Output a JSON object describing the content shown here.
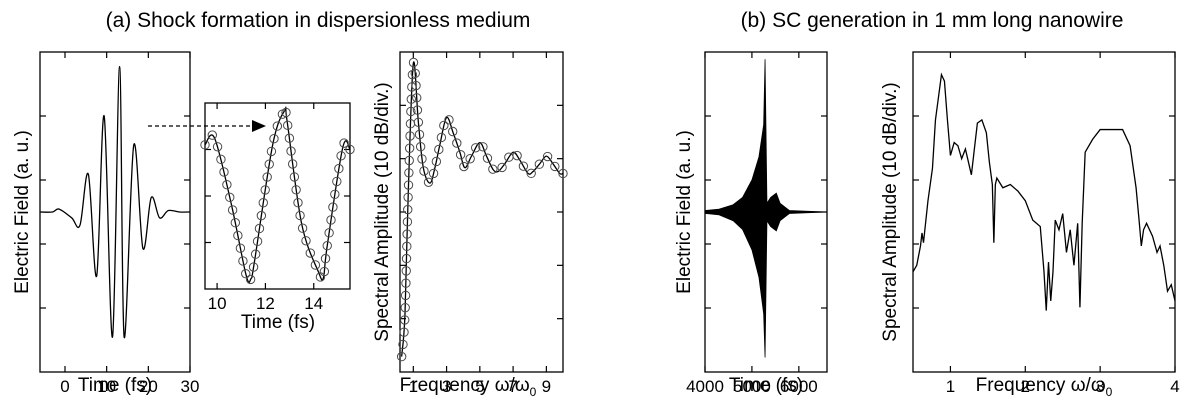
{
  "titles": {
    "a": "(a) Shock formation in dispersionless medium",
    "b": "(b) SC generation in 1 mm long nanowire"
  },
  "colors": {
    "line": "#000000",
    "marker": "#4a4a4a",
    "background": "#ffffff"
  },
  "chart_data": [
    {
      "id": "a1",
      "type": "line",
      "title": "",
      "xlabel": "Time (fs)",
      "ylabel": "Electric Field (a. u.)",
      "xlim": [
        -6,
        30
      ],
      "ylim": [
        -1.1,
        1.1
      ],
      "xticks": [
        0,
        10,
        20,
        30
      ],
      "xtick_labels": [
        "0",
        "10",
        "20",
        "30"
      ],
      "ytick_labels": [],
      "series": [
        {
          "x": [
            -6,
            -3,
            -1.4,
            1.6,
            3.6,
            5.6,
            7.6,
            9.4,
            11.4,
            13.1,
            14.2,
            16.5,
            18.7,
            20.7,
            22.7,
            24.8,
            27.5,
            30
          ],
          "y": [
            0,
            0,
            0.02,
            -0.04,
            -0.09,
            0.26,
            -0.44,
            0.66,
            -0.86,
            1,
            -0.86,
            0.46,
            -0.25,
            0.1,
            -0.04,
            0.01,
            0,
            0
          ]
        }
      ]
    },
    {
      "id": "a2",
      "type": "line",
      "title": "",
      "xlabel": "Time (fs)",
      "ylabel": "",
      "xlim": [
        9.5,
        15.5
      ],
      "ylim": [
        -1,
        1
      ],
      "xticks": [
        10,
        12,
        14
      ],
      "xtick_labels": [
        "10",
        "12",
        "14"
      ],
      "ytick_labels": [],
      "series": [
        {
          "x": [
            9.5,
            9.9,
            10.6,
            11.2,
            11.4,
            11.55,
            12.3,
            12.8,
            12.9,
            13.5,
            14.2,
            14.4,
            14.55,
            15.2,
            15.5
          ],
          "y": [
            0.55,
            0.62,
            -0.1,
            -0.85,
            -0.89,
            -0.7,
            0.55,
            0.92,
            0.8,
            -0.3,
            -0.82,
            -0.88,
            -0.55,
            0.52,
            0.5
          ]
        }
      ],
      "annotation": "dashed arrow from the pulse peak in the left panel to the shock front"
    },
    {
      "id": "a3",
      "type": "line",
      "title": "",
      "xlabel": "Frequency ω/ω0",
      "ylabel": "Spectral Amplitude (10 dB/div.)",
      "xlim": [
        0.2,
        10
      ],
      "ylim": [
        -6,
        2.3
      ],
      "xticks": [
        1,
        3,
        5,
        7,
        9
      ],
      "xtick_labels": [
        "1",
        "3",
        "5",
        "7",
        "9"
      ],
      "ytick_labels": [],
      "series": [
        {
          "x": [
            0.3,
            0.5,
            0.7,
            1.0,
            1.3,
            1.6,
            2.0,
            2.3,
            2.6,
            3.0,
            3.4,
            3.8,
            4.1,
            4.5,
            5.0,
            5.4,
            5.8,
            6.1,
            6.5,
            7.0,
            7.4,
            7.9,
            8.2,
            8.6,
            9.0,
            9.4,
            9.8,
            10.0
          ],
          "y": [
            -5.6,
            -4.5,
            -1.3,
            2.0,
            0.5,
            -0.7,
            -1.1,
            -0.7,
            -0.1,
            0.6,
            0.2,
            -0.3,
            -0.7,
            -0.4,
            -0.05,
            -0.4,
            -0.75,
            -0.8,
            -0.6,
            -0.3,
            -0.5,
            -0.85,
            -0.8,
            -0.6,
            -0.4,
            -0.6,
            -0.85,
            -0.85
          ]
        }
      ]
    },
    {
      "id": "b1",
      "type": "line",
      "title": "",
      "xlabel": "Time (fs)",
      "ylabel": "Electric Field (a. u.)",
      "xlim": [
        4000,
        6600
      ],
      "ylim": [
        -1.1,
        1.1
      ],
      "xticks": [
        4000,
        5000,
        6000
      ],
      "xtick_labels": [
        "4000",
        "5000",
        "6000"
      ],
      "ytick_labels": [],
      "series": [
        {
          "name": "",
          "x": [
            4000,
            4300,
            4600,
            4800,
            5000,
            5150,
            5250,
            5280,
            5320,
            5400,
            5520,
            5600,
            5800,
            6600
          ],
          "envelope_upper": [
            0.01,
            0.02,
            0.05,
            0.1,
            0.22,
            0.38,
            0.6,
            1.05,
            0.06,
            0.1,
            0.13,
            0.06,
            0.01,
            0
          ],
          "envelope_lower": [
            -0.01,
            -0.02,
            -0.06,
            -0.12,
            -0.26,
            -0.45,
            -0.7,
            -1.0,
            -0.06,
            -0.1,
            -0.13,
            -0.06,
            -0.01,
            0
          ]
        }
      ]
    },
    {
      "id": "b2",
      "type": "line",
      "title": "",
      "xlabel": "Frequency ω/ω0",
      "ylabel": "Spectral Amplitude (10 dB/div.)",
      "xlim": [
        0.5,
        4
      ],
      "ylim": [
        -8.3,
        1.6
      ],
      "xticks": [
        1,
        2,
        3,
        4
      ],
      "xtick_labels": [
        "1",
        "2",
        "3",
        "4"
      ],
      "ytick_labels": [],
      "series": [
        {
          "x": [
            0.5,
            0.55,
            0.6,
            0.62,
            0.64,
            0.7,
            0.76,
            0.8,
            0.88,
            0.92,
            0.96,
            1.0,
            1.05,
            1.1,
            1.15,
            1.2,
            1.28,
            1.32,
            1.36,
            1.42,
            1.48,
            1.52,
            1.56,
            1.58,
            1.6,
            1.62,
            1.7,
            1.8,
            1.9,
            2.0,
            2.1,
            2.2,
            2.25,
            2.28,
            2.31,
            2.34,
            2.37,
            2.4,
            2.45,
            2.5,
            2.55,
            2.6,
            2.65,
            2.7,
            2.73,
            2.76,
            2.8,
            2.9,
            3.0,
            3.1,
            3.2,
            3.3,
            3.4,
            3.48,
            3.52,
            3.55,
            3.58,
            3.62,
            3.7,
            3.76,
            3.8,
            3.85,
            3.9,
            3.95,
            4.0
          ],
          "y": [
            -5.2,
            -5.0,
            -4.4,
            -4.0,
            -4.3,
            -3.0,
            -2.0,
            -0.5,
            0.9,
            0.7,
            -0.5,
            -1.6,
            -1.2,
            -1.3,
            -1.7,
            -1.4,
            -2.2,
            -1.4,
            -0.6,
            -0.5,
            -0.9,
            -1.8,
            -2.5,
            -4.3,
            -2.5,
            -2.3,
            -2.6,
            -2.5,
            -2.7,
            -3.0,
            -3.6,
            -3.8,
            -5.2,
            -6.4,
            -4.9,
            -6.1,
            -5.2,
            -3.6,
            -3.9,
            -3.4,
            -4.6,
            -3.9,
            -5.0,
            -3.7,
            -6.3,
            -3.7,
            -1.5,
            -1.1,
            -0.8,
            -0.8,
            -0.8,
            -0.8,
            -1.3,
            -2.6,
            -3.6,
            -4.4,
            -3.9,
            -3.7,
            -4.1,
            -4.6,
            -4.4,
            -5.0,
            -5.8,
            -5.6,
            -6.1
          ]
        }
      ]
    }
  ]
}
